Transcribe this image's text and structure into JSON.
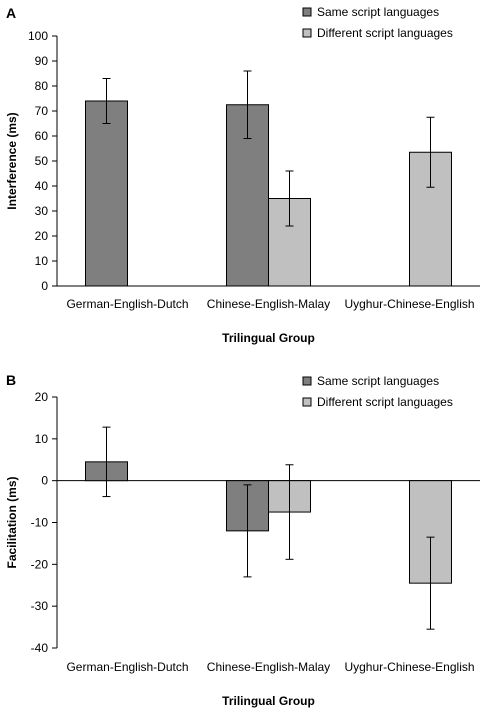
{
  "chart_data": [
    {
      "panel_label": "A",
      "type": "bar",
      "categories": [
        "German-English-Dutch",
        "Chinese-English-Malay",
        "Uyghur-Chinese-English"
      ],
      "series": [
        {
          "name": "Same script languages",
          "color": "#7f7f7f",
          "values": [
            74,
            72.5,
            null
          ],
          "errors": [
            9,
            13.5,
            null
          ]
        },
        {
          "name": "Different script languages",
          "color": "#c0c0c0",
          "values": [
            null,
            35,
            53.5
          ],
          "errors": [
            null,
            11,
            14
          ]
        }
      ],
      "xlabel": "Trilingual Group",
      "ylabel": "Interference (ms)",
      "ylim": [
        0,
        100
      ],
      "yticks": [
        0,
        10,
        20,
        30,
        40,
        50,
        60,
        70,
        80,
        90,
        100
      ],
      "legend_position": "top-right",
      "grid": false
    },
    {
      "panel_label": "B",
      "type": "bar",
      "categories": [
        "German-English-Dutch",
        "Chinese-English-Malay",
        "Uyghur-Chinese-English"
      ],
      "series": [
        {
          "name": "Same script languages",
          "color": "#7f7f7f",
          "values": [
            4.5,
            -12,
            null
          ],
          "errors": [
            8.3,
            11,
            null
          ]
        },
        {
          "name": "Different script languages",
          "color": "#c0c0c0",
          "values": [
            null,
            -7.5,
            -24.5
          ],
          "errors": [
            null,
            11.3,
            11
          ]
        }
      ],
      "xlabel": "Trilingual Group",
      "ylabel": "Facilitation (ms)",
      "ylim": [
        -40,
        20
      ],
      "yticks": [
        -40,
        -30,
        -20,
        -10,
        0,
        10,
        20
      ],
      "legend_position": "top-right",
      "grid": false
    }
  ]
}
